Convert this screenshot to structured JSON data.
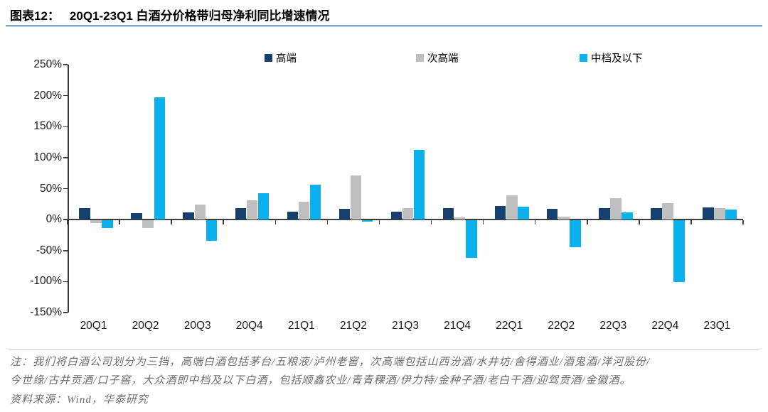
{
  "header": {
    "figure_label": "图表12：",
    "title": "20Q1-23Q1 白酒分价格带归母净利同比增速情况"
  },
  "chart_data": {
    "type": "bar",
    "title": "20Q1-23Q1 白酒分价格带归母净利同比增速情况",
    "categories": [
      "20Q1",
      "20Q2",
      "20Q3",
      "20Q4",
      "21Q1",
      "21Q2",
      "21Q3",
      "21Q4",
      "22Q1",
      "22Q2",
      "22Q3",
      "22Q4",
      "23Q1"
    ],
    "series": [
      {
        "name": "高端",
        "color": "#16406d",
        "values": [
          18,
          10,
          12,
          18,
          13,
          17,
          13,
          18,
          22,
          17,
          18,
          19,
          20
        ]
      },
      {
        "name": "次高端",
        "color": "#bfbfbf",
        "values": [
          -4,
          -12,
          24,
          31,
          29,
          71,
          18,
          4,
          39,
          5,
          34,
          26,
          18
        ]
      },
      {
        "name": "中档及以下",
        "color": "#0ab1ec",
        "values": [
          -12,
          197,
          -33,
          42,
          56,
          -2,
          113,
          -61,
          21,
          -43,
          12,
          -100,
          16
        ]
      }
    ],
    "xlabel": "",
    "ylabel": "",
    "ylim": [
      -150,
      250
    ],
    "ytick_step": 50,
    "ytick_suffix": "%",
    "grid": false,
    "legend_position": "top"
  },
  "notes": {
    "line1": "注：我们将白酒公司划分为三挡，高端白酒包括茅台/五粮液/泸州老窖，次高端包括山西汾酒/水井坊/舍得酒业/酒鬼酒/洋河股份/",
    "line2": "今世缘/古井贡酒/口子窖，大众酒即中档及以下白酒，包括顺鑫农业/青青稞酒/伊力特/金种子酒/老白干酒/迎驾贡酒/金徽酒。",
    "source": "资料来源：Wind，华泰研究"
  }
}
